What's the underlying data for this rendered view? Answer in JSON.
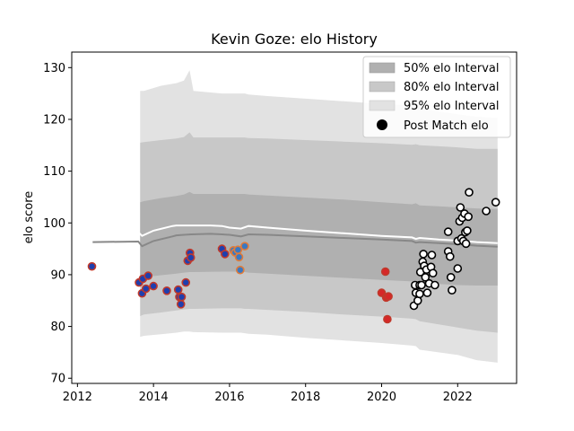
{
  "chart_data": {
    "type": "scatter",
    "title": "Kevin Goze: elo History",
    "xlabel": "",
    "ylabel": "elo score",
    "xlim": [
      2011.85,
      2023.55
    ],
    "ylim": [
      69.0,
      133.0
    ],
    "xticks": [
      2012,
      2014,
      2016,
      2018,
      2020,
      2022
    ],
    "yticks": [
      70,
      80,
      90,
      100,
      110,
      120,
      130
    ],
    "grid": false,
    "legend_position": "top-right",
    "legend": [
      {
        "label": "50% elo Interval",
        "kind": "band",
        "color": "#b0b0b0"
      },
      {
        "label": "80% elo Interval",
        "kind": "band",
        "color": "#c8c8c8"
      },
      {
        "label": "95% elo Interval",
        "kind": "band",
        "color": "#e2e2e2"
      },
      {
        "label": "Post Match elo",
        "kind": "marker",
        "color": "#000000"
      }
    ],
    "bands": {
      "x": [
        2013.65,
        2013.75,
        2014.2,
        2014.6,
        2014.8,
        2014.95,
        2015.05,
        2015.8,
        2016.0,
        2016.3,
        2016.4,
        2016.5,
        2017.0,
        2018.0,
        2019.0,
        2020.0,
        2020.8,
        2020.9,
        2021.0,
        2021.5,
        2022.0,
        2022.5,
        2023.05
      ],
      "lo95": [
        78.0,
        78.2,
        78.5,
        78.8,
        79.0,
        79.0,
        78.9,
        78.8,
        78.8,
        78.8,
        78.7,
        78.6,
        78.4,
        77.8,
        77.3,
        76.8,
        76.3,
        76.2,
        75.5,
        75.0,
        74.5,
        73.5,
        73.0
      ],
      "hi95": [
        125.5,
        125.5,
        126.5,
        127.0,
        127.5,
        129.5,
        125.5,
        125.0,
        125.0,
        125.0,
        125.0,
        124.8,
        124.5,
        124.0,
        123.5,
        123.0,
        122.7,
        124.0,
        122.3,
        121.5,
        121.0,
        120.5,
        120.3
      ],
      "lo80": [
        82.0,
        82.3,
        82.7,
        83.1,
        83.3,
        83.4,
        83.4,
        83.5,
        83.5,
        83.5,
        83.4,
        83.4,
        83.2,
        82.8,
        82.3,
        81.9,
        81.5,
        81.4,
        81.0,
        80.4,
        79.8,
        79.2,
        78.8
      ],
      "hi80": [
        115.5,
        115.6,
        116.0,
        116.3,
        116.6,
        117.5,
        116.5,
        116.5,
        116.5,
        116.5,
        116.5,
        116.4,
        116.3,
        116.0,
        115.7,
        115.4,
        115.1,
        115.2,
        115.0,
        114.8,
        114.6,
        114.3,
        114.3
      ],
      "lo50": [
        89.2,
        89.5,
        89.9,
        90.2,
        90.4,
        90.5,
        90.5,
        90.6,
        90.6,
        90.6,
        90.5,
        90.4,
        90.2,
        89.8,
        89.4,
        89.0,
        88.7,
        88.6,
        88.4,
        88.2,
        88.0,
        87.9,
        87.9
      ],
      "hi50": [
        104.0,
        104.2,
        104.8,
        105.2,
        105.5,
        106.0,
        105.6,
        105.6,
        105.6,
        105.6,
        105.6,
        105.5,
        105.3,
        104.9,
        104.5,
        104.0,
        103.6,
        103.8,
        103.4,
        103.2,
        103.0,
        102.8,
        102.7
      ]
    },
    "series": [
      {
        "x": [
          2012.4,
          2013.6,
          2013.7,
          2014.0,
          2014.5,
          2014.6,
          2014.8,
          2015.0,
          2015.5,
          2015.8,
          2016.0,
          2016.3,
          2016.5,
          2017.0,
          2018.0,
          2019.0,
          2020.0,
          2020.8,
          2020.9,
          2021.0,
          2021.5,
          2022.0,
          2022.5,
          2023.05
        ],
        "y": [
          96.3,
          96.4,
          95.5,
          96.5,
          97.4,
          97.6,
          97.7,
          97.8,
          97.9,
          97.8,
          97.7,
          97.4,
          97.8,
          97.7,
          97.4,
          97.1,
          96.8,
          96.5,
          96.2,
          96.3,
          96.1,
          95.9,
          95.6,
          95.4
        ],
        "color": "#888888"
      },
      {
        "x": [
          2012.4,
          2013.6,
          2013.7,
          2014.0,
          2014.5,
          2014.6,
          2014.8,
          2015.0,
          2015.5,
          2015.8,
          2016.0,
          2016.3,
          2016.5,
          2017.0,
          2018.0,
          2019.0,
          2020.0,
          2020.8,
          2020.9,
          2021.0,
          2021.5,
          2022.0,
          2022.5,
          2023.05
        ],
        "y": [
          98.4,
          98.2,
          97.5,
          98.5,
          99.4,
          99.5,
          99.5,
          99.5,
          99.5,
          99.4,
          99.1,
          98.9,
          99.4,
          99.1,
          98.5,
          98.0,
          97.5,
          97.2,
          96.9,
          97.1,
          96.8,
          96.6,
          96.3,
          96.1
        ],
        "color": "#ffffff"
      }
    ],
    "points": [
      {
        "x": 2012.38,
        "y": 91.6,
        "fill": "#1f3fae",
        "edge": "#c0392b"
      },
      {
        "x": 2013.62,
        "y": 88.5,
        "fill": "#1f3fae",
        "edge": "#c0392b"
      },
      {
        "x": 2013.7,
        "y": 86.4,
        "fill": "#1f3fae",
        "edge": "#c0392b"
      },
      {
        "x": 2013.72,
        "y": 89.2,
        "fill": "#1f3fae",
        "edge": "#c0392b"
      },
      {
        "x": 2013.8,
        "y": 87.3,
        "fill": "#1f3fae",
        "edge": "#c0392b"
      },
      {
        "x": 2013.86,
        "y": 89.8,
        "fill": "#1f3fae",
        "edge": "#c0392b"
      },
      {
        "x": 2014.0,
        "y": 87.8,
        "fill": "#1f3fae",
        "edge": "#c0392b"
      },
      {
        "x": 2014.35,
        "y": 86.9,
        "fill": "#1f3fae",
        "edge": "#c0392b"
      },
      {
        "x": 2014.65,
        "y": 87.1,
        "fill": "#1f3fae",
        "edge": "#c0392b"
      },
      {
        "x": 2014.68,
        "y": 85.7,
        "fill": "#1f3fae",
        "edge": "#c0392b"
      },
      {
        "x": 2014.72,
        "y": 84.3,
        "fill": "#1f3fae",
        "edge": "#c0392b"
      },
      {
        "x": 2014.74,
        "y": 85.7,
        "fill": "#1f3fae",
        "edge": "#c0392b"
      },
      {
        "x": 2014.85,
        "y": 88.5,
        "fill": "#1f3fae",
        "edge": "#c0392b"
      },
      {
        "x": 2014.9,
        "y": 92.7,
        "fill": "#1f3fae",
        "edge": "#c0392b"
      },
      {
        "x": 2014.96,
        "y": 94.2,
        "fill": "#1f3fae",
        "edge": "#c0392b"
      },
      {
        "x": 2014.98,
        "y": 93.3,
        "fill": "#1f3fae",
        "edge": "#c0392b"
      },
      {
        "x": 2015.8,
        "y": 95.0,
        "fill": "#1f3fae",
        "edge": "#c0392b"
      },
      {
        "x": 2015.88,
        "y": 94.0,
        "fill": "#1f3fae",
        "edge": "#c0392b"
      },
      {
        "x": 2016.1,
        "y": 94.7,
        "fill": "#3a78c2",
        "edge": "#e07b39"
      },
      {
        "x": 2016.15,
        "y": 94.3,
        "fill": "#3a78c2",
        "edge": "#e07b39"
      },
      {
        "x": 2016.22,
        "y": 94.8,
        "fill": "#3a78c2",
        "edge": "#e07b39"
      },
      {
        "x": 2016.25,
        "y": 93.4,
        "fill": "#3a78c2",
        "edge": "#e07b39"
      },
      {
        "x": 2016.28,
        "y": 90.9,
        "fill": "#3a78c2",
        "edge": "#e07b39"
      },
      {
        "x": 2016.4,
        "y": 95.5,
        "fill": "#3a78c2",
        "edge": "#e07b39"
      },
      {
        "x": 2020.0,
        "y": 86.5,
        "fill": "#d62728",
        "edge": "#c0392b"
      },
      {
        "x": 2020.1,
        "y": 90.6,
        "fill": "#d62728",
        "edge": "#c0392b"
      },
      {
        "x": 2020.12,
        "y": 85.6,
        "fill": "#d62728",
        "edge": "#c0392b"
      },
      {
        "x": 2020.15,
        "y": 81.4,
        "fill": "#d62728",
        "edge": "#c0392b"
      },
      {
        "x": 2020.18,
        "y": 85.8,
        "fill": "#d62728",
        "edge": "#c0392b"
      },
      {
        "x": 2020.85,
        "y": 84.0,
        "fill": "#ffffff",
        "edge": "#000000"
      },
      {
        "x": 2020.88,
        "y": 88.0,
        "fill": "#ffffff",
        "edge": "#000000"
      },
      {
        "x": 2020.9,
        "y": 86.5,
        "fill": "#ffffff",
        "edge": "#000000"
      },
      {
        "x": 2020.95,
        "y": 85.0,
        "fill": "#ffffff",
        "edge": "#000000"
      },
      {
        "x": 2021.0,
        "y": 86.3,
        "fill": "#ffffff",
        "edge": "#000000"
      },
      {
        "x": 2021.0,
        "y": 88.0,
        "fill": "#ffffff",
        "edge": "#000000"
      },
      {
        "x": 2021.02,
        "y": 90.5,
        "fill": "#ffffff",
        "edge": "#000000"
      },
      {
        "x": 2021.05,
        "y": 88.0,
        "fill": "#ffffff",
        "edge": "#000000"
      },
      {
        "x": 2021.08,
        "y": 92.5,
        "fill": "#ffffff",
        "edge": "#000000"
      },
      {
        "x": 2021.1,
        "y": 94.0,
        "fill": "#ffffff",
        "edge": "#000000"
      },
      {
        "x": 2021.12,
        "y": 91.7,
        "fill": "#ffffff",
        "edge": "#000000"
      },
      {
        "x": 2021.15,
        "y": 89.5,
        "fill": "#ffffff",
        "edge": "#000000"
      },
      {
        "x": 2021.18,
        "y": 91.0,
        "fill": "#ffffff",
        "edge": "#000000"
      },
      {
        "x": 2021.2,
        "y": 86.5,
        "fill": "#ffffff",
        "edge": "#000000"
      },
      {
        "x": 2021.25,
        "y": 88.3,
        "fill": "#ffffff",
        "edge": "#000000"
      },
      {
        "x": 2021.3,
        "y": 91.5,
        "fill": "#ffffff",
        "edge": "#000000"
      },
      {
        "x": 2021.32,
        "y": 93.8,
        "fill": "#ffffff",
        "edge": "#000000"
      },
      {
        "x": 2021.35,
        "y": 90.3,
        "fill": "#ffffff",
        "edge": "#000000"
      },
      {
        "x": 2021.4,
        "y": 88.0,
        "fill": "#ffffff",
        "edge": "#000000"
      },
      {
        "x": 2021.75,
        "y": 98.3,
        "fill": "#ffffff",
        "edge": "#000000"
      },
      {
        "x": 2021.75,
        "y": 94.5,
        "fill": "#ffffff",
        "edge": "#000000"
      },
      {
        "x": 2021.8,
        "y": 93.5,
        "fill": "#ffffff",
        "edge": "#000000"
      },
      {
        "x": 2021.82,
        "y": 89.5,
        "fill": "#ffffff",
        "edge": "#000000"
      },
      {
        "x": 2021.85,
        "y": 87.0,
        "fill": "#ffffff",
        "edge": "#000000"
      },
      {
        "x": 2022.0,
        "y": 96.5,
        "fill": "#ffffff",
        "edge": "#000000"
      },
      {
        "x": 2022.0,
        "y": 91.2,
        "fill": "#ffffff",
        "edge": "#000000"
      },
      {
        "x": 2022.05,
        "y": 100.3,
        "fill": "#ffffff",
        "edge": "#000000"
      },
      {
        "x": 2022.07,
        "y": 103.0,
        "fill": "#ffffff",
        "edge": "#000000"
      },
      {
        "x": 2022.1,
        "y": 97.0,
        "fill": "#ffffff",
        "edge": "#000000"
      },
      {
        "x": 2022.12,
        "y": 101.0,
        "fill": "#ffffff",
        "edge": "#000000"
      },
      {
        "x": 2022.15,
        "y": 96.5,
        "fill": "#ffffff",
        "edge": "#000000"
      },
      {
        "x": 2022.18,
        "y": 101.8,
        "fill": "#ffffff",
        "edge": "#000000"
      },
      {
        "x": 2022.2,
        "y": 98.2,
        "fill": "#ffffff",
        "edge": "#000000"
      },
      {
        "x": 2022.22,
        "y": 96.0,
        "fill": "#ffffff",
        "edge": "#000000"
      },
      {
        "x": 2022.25,
        "y": 98.5,
        "fill": "#ffffff",
        "edge": "#000000"
      },
      {
        "x": 2022.28,
        "y": 101.2,
        "fill": "#ffffff",
        "edge": "#000000"
      },
      {
        "x": 2022.3,
        "y": 105.9,
        "fill": "#ffffff",
        "edge": "#000000"
      },
      {
        "x": 2022.75,
        "y": 102.3,
        "fill": "#ffffff",
        "edge": "#000000"
      },
      {
        "x": 2023.0,
        "y": 104.0,
        "fill": "#ffffff",
        "edge": "#000000"
      }
    ]
  }
}
